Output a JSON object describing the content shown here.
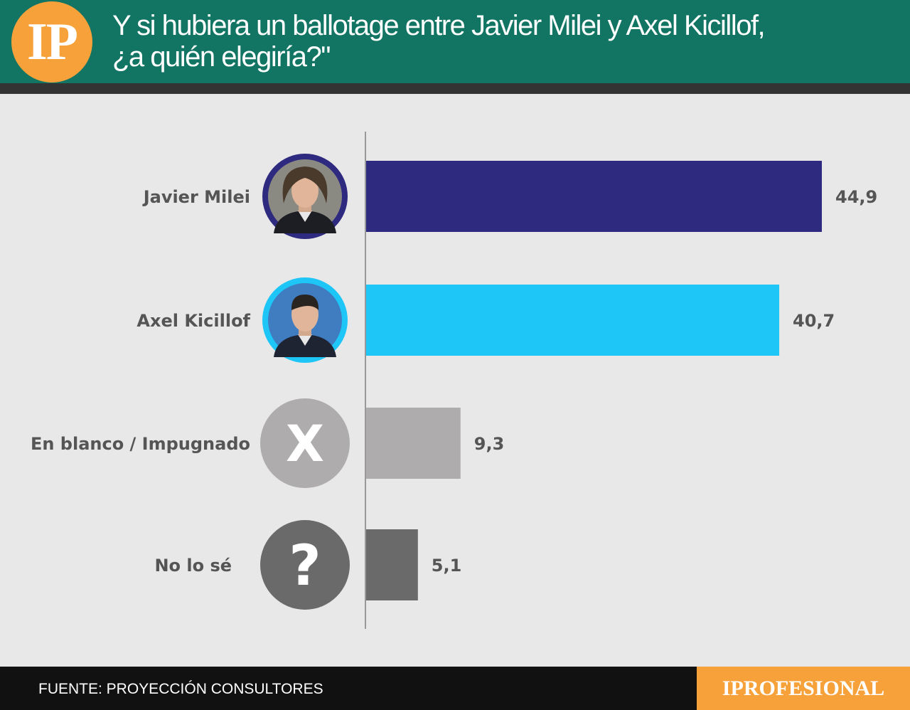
{
  "header": {
    "logo_text": "IP",
    "title_line1": "Y si hubiera un ballotage entre Javier Milei y Axel Kicillof,",
    "title_line2": "¿a quién elegiría?\""
  },
  "chart_data": {
    "type": "bar",
    "orientation": "horizontal",
    "categories": [
      "Javier Milei",
      "Axel Kicillof",
      "En blanco / Impugnado",
      "No lo sé"
    ],
    "values": [
      44.9,
      40.7,
      9.3,
      5.1
    ],
    "value_labels": [
      "44,9",
      "40,7",
      "9,3",
      "5,1"
    ],
    "colors": [
      "#2e2a7f",
      "#1ec6f7",
      "#aeacac",
      "#6a6a6a"
    ],
    "icons": [
      "portrait-javier-milei",
      "portrait-axel-kicillof",
      "x-icon",
      "question-icon"
    ],
    "icon_glyphs": [
      "",
      "",
      "X",
      "?"
    ],
    "xlim": [
      0,
      50
    ],
    "grid": false,
    "legend": "none"
  },
  "footer": {
    "source": "FUENTE: PROYECCIÓN CONSULTORES",
    "brand": "IPROFESIONAL"
  }
}
